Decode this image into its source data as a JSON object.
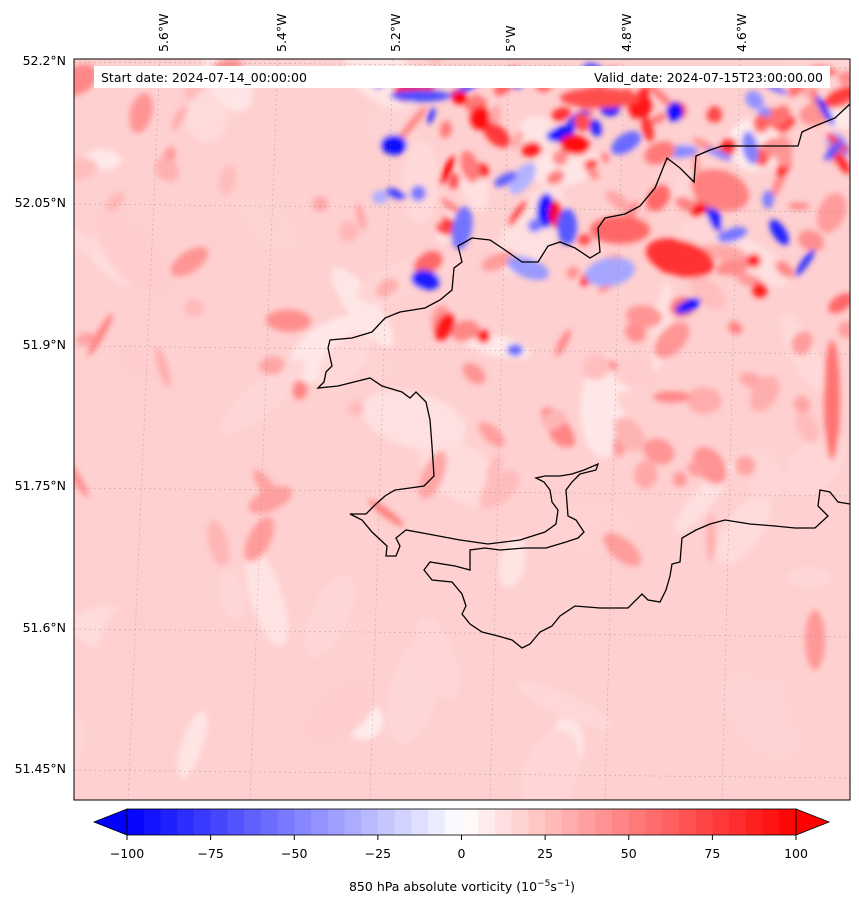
{
  "map": {
    "start_date": "Start date: 2024-07-14_00:00:00",
    "valid_date": "Valid_date: 2024-07-15T23:00:00.00",
    "lon_labels": [
      "5.6°W",
      "5.4°W",
      "5.2°W",
      "5°W",
      "4.8°W",
      "4.6°W"
    ],
    "lat_labels": [
      "52.2°N",
      "52.05°N",
      "51.9°N",
      "51.75°N",
      "51.6°N",
      "51.45°N"
    ],
    "field_base_color": "#ffd0d0",
    "coastline_color": "#000000"
  },
  "colorbar": {
    "ticks": [
      "−100",
      "−75",
      "−50",
      "−25",
      "0",
      "25",
      "50",
      "75",
      "100"
    ],
    "label": "850 hPa absolute vorticity (10",
    "label_exp1": "−5",
    "label_mid": "s",
    "label_exp2": "−1",
    "label_end": ")",
    "cmap": "bwr",
    "range": [
      -100,
      100
    ],
    "extend": "both"
  }
}
